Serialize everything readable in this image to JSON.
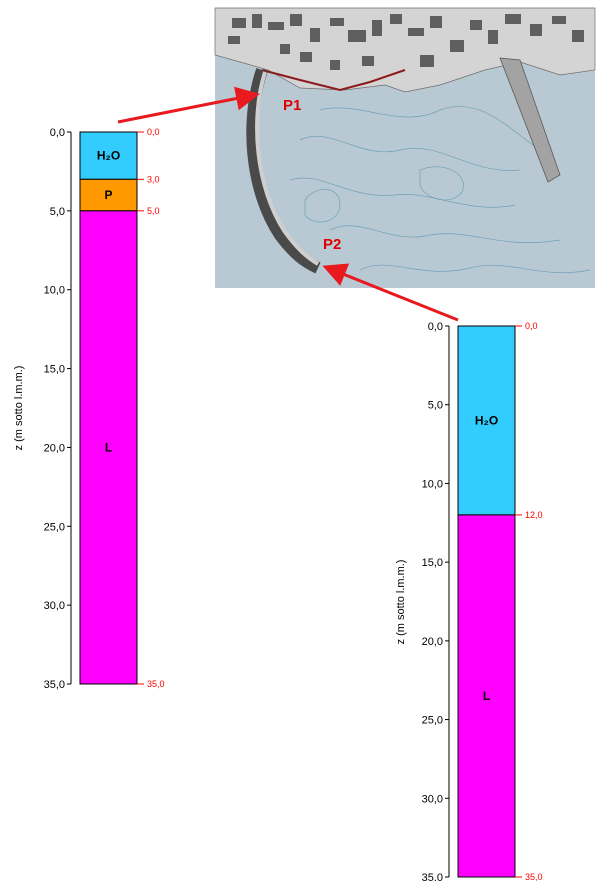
{
  "map": {
    "labels": [
      {
        "key": "p1",
        "text": "P1"
      },
      {
        "key": "p2",
        "text": "P2"
      }
    ],
    "colors": {
      "sea": "#b9c9d4",
      "land": "#d6d6d6",
      "contour": "#6fa1b6",
      "coast": "#8b1a1a",
      "pier": "#9a9a9a"
    }
  },
  "arrow_color": "#e8191f",
  "columns": [
    {
      "id": "P1",
      "axis_title": "z (m sotto l.m.m.)",
      "ticks": [
        "0,0",
        "5,0",
        "10,0",
        "15,0",
        "20,0",
        "25,0",
        "30,0",
        "35,0"
      ],
      "layers": [
        {
          "label": "H₂O",
          "top": 0.0,
          "bottom": 3.0,
          "color": "#33ccff"
        },
        {
          "label": "P",
          "top": 3.0,
          "bottom": 5.0,
          "color": "#ff9900"
        },
        {
          "label": "L",
          "top": 5.0,
          "bottom": 35.0,
          "color": "#ff00ff"
        }
      ],
      "depth_labels": [
        "0,0",
        "3,0",
        "5,0",
        "35,0"
      ]
    },
    {
      "id": "P2",
      "axis_title": "z (m sotto l.m.m.)",
      "ticks": [
        "0,0",
        "5,0",
        "10,0",
        "15,0",
        "20,0",
        "25,0",
        "30,0",
        "35,0"
      ],
      "layers": [
        {
          "label": "H₂O",
          "top": 0.0,
          "bottom": 12.0,
          "color": "#33ccff"
        },
        {
          "label": "L",
          "top": 12.0,
          "bottom": 35.0,
          "color": "#ff00ff"
        }
      ],
      "depth_labels": [
        "0,0",
        "12,0",
        "35,0"
      ]
    }
  ]
}
